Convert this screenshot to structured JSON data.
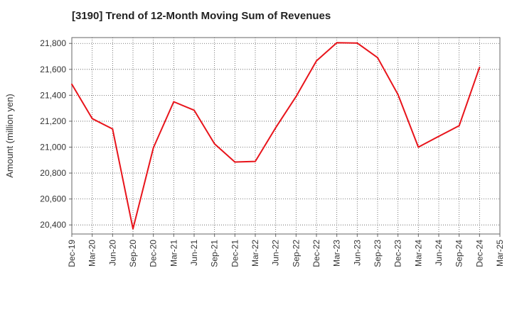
{
  "chart_data": {
    "type": "line",
    "title": "[3190]  Trend of 12-Month Moving Sum of Revenues",
    "xlabel": "",
    "ylabel": "Amount (million yen)",
    "ylim": [
      20330,
      21845
    ],
    "y_ticks": [
      20400,
      20600,
      20800,
      21000,
      21200,
      21400,
      21600,
      21800
    ],
    "y_tick_labels": [
      "20,400",
      "20,600",
      "20,800",
      "21,000",
      "21,200",
      "21,400",
      "21,600",
      "21,800"
    ],
    "categories": [
      "Dec-19",
      "Mar-20",
      "Jun-20",
      "Sep-20",
      "Dec-20",
      "Mar-21",
      "Jun-21",
      "Sep-21",
      "Dec-21",
      "Mar-22",
      "Jun-22",
      "Sep-22",
      "Dec-22",
      "Mar-23",
      "Jun-23",
      "Sep-23",
      "Dec-23",
      "Mar-24",
      "Jun-24",
      "Sep-24",
      "Dec-24",
      "Mar-25"
    ],
    "grid": true,
    "color": "#e8141b",
    "series": [
      {
        "values": [
          21485,
          21220,
          21140,
          20370,
          20995,
          21350,
          21285,
          21025,
          20885,
          20890,
          21150,
          21390,
          21665,
          21805,
          21803,
          21690,
          21405,
          21000,
          21083,
          21165,
          21615,
          null
        ]
      }
    ]
  }
}
